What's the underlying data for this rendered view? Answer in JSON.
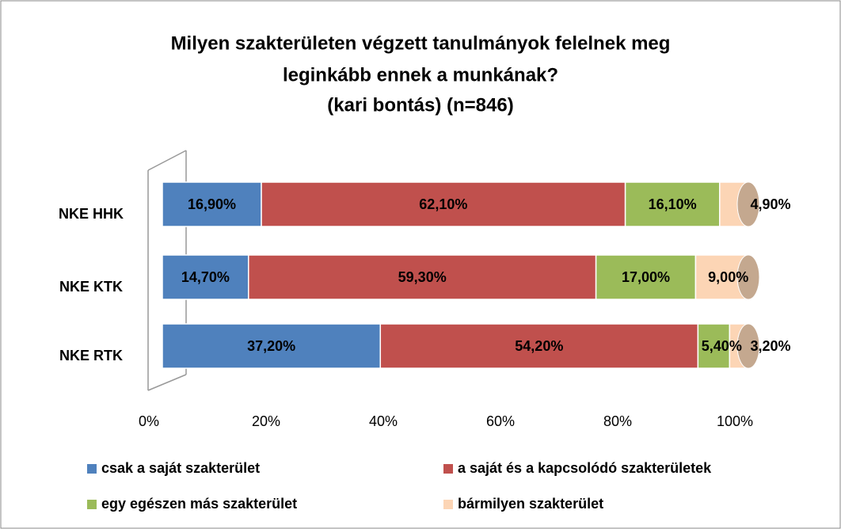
{
  "chart_data": {
    "type": "stacked-bar-horizontal",
    "title": [
      "Milyen szakterületen végzett tanulmányok felelnek meg",
      "leginkább ennek a munkának?",
      "(kari bontás) (n=846)"
    ],
    "categories": [
      "NKE HHK",
      "NKE KTK",
      "NKE RTK"
    ],
    "series": [
      {
        "name": "csak a saját szakterület",
        "color": "#4f81bd",
        "values": [
          16.9,
          14.7,
          37.2
        ],
        "value_labels": [
          "16,90%",
          "14,70%",
          "37,20%"
        ]
      },
      {
        "name": "a saját és a kapcsolódó szakterületek",
        "color": "#c0504d",
        "values": [
          62.1,
          59.3,
          54.2
        ],
        "value_labels": [
          "62,10%",
          "59,30%",
          "54,20%"
        ]
      },
      {
        "name": "egy egészen más szakterület",
        "color": "#9bbb59",
        "values": [
          16.1,
          17.0,
          5.4
        ],
        "value_labels": [
          "16,10%",
          "17,00%",
          "5,40%"
        ]
      },
      {
        "name": "bármilyen szakterület",
        "color": "#fcd5b5",
        "values": [
          4.9,
          9.0,
          3.2
        ],
        "value_labels": [
          "4,90%",
          "9,00%",
          "3,20%"
        ]
      }
    ],
    "xlim": [
      0,
      100
    ],
    "xticks": [
      {
        "value": 0,
        "label": "0%"
      },
      {
        "value": 20,
        "label": "20%"
      },
      {
        "value": 40,
        "label": "40%"
      },
      {
        "value": 60,
        "label": "60%"
      },
      {
        "value": 80,
        "label": "80%"
      },
      {
        "value": 100,
        "label": "100%"
      }
    ],
    "legend": "bottom"
  }
}
